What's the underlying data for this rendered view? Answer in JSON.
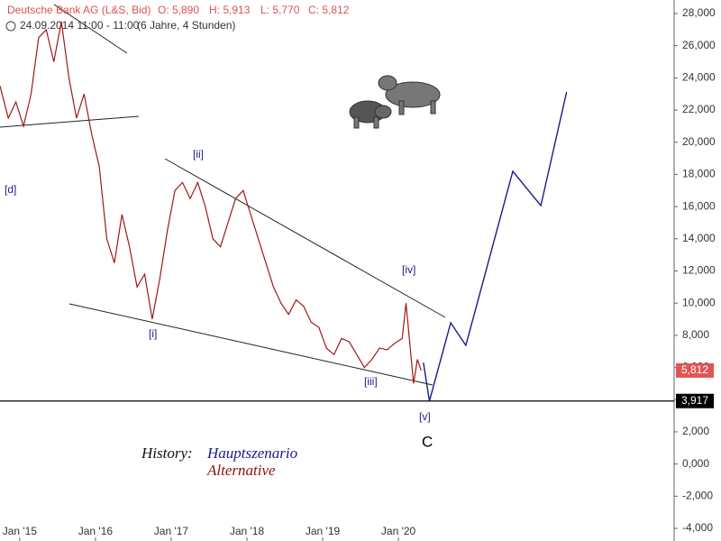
{
  "chart_data": {
    "type": "line",
    "header": {
      "title": "Deutsche Bank AG (L&S, Bid)",
      "open": "O: 5,890",
      "high": "H: 5,913",
      "low": "L: 5,770",
      "close": "C: 5,812",
      "period": "24.09.2014 11:00 - 11:00",
      "range": "(6 Jahre, 4 Stunden)"
    },
    "xlim": [
      2014.74,
      2023.64
    ],
    "xticks": [
      {
        "value": 2015,
        "label": "Jan '15"
      },
      {
        "value": 2016,
        "label": "Jan '16"
      },
      {
        "value": 2017,
        "label": "Jan '17"
      },
      {
        "value": 2018,
        "label": "Jan '18"
      },
      {
        "value": 2019,
        "label": "Jan '19"
      },
      {
        "value": 2020,
        "label": "Jan '20"
      }
    ],
    "ylim": [
      -4000,
      28000
    ],
    "yticks": [
      {
        "value": -4000,
        "label": "-4,000"
      },
      {
        "value": -2000,
        "label": "-2,000"
      },
      {
        "value": 0,
        "label": "0,000"
      },
      {
        "value": 2000,
        "label": "2,000"
      },
      {
        "value": 4000,
        "label": "4,000"
      },
      {
        "value": 6000,
        "label": "6,000"
      },
      {
        "value": 8000,
        "label": "8,000"
      },
      {
        "value": 10000,
        "label": "10,000"
      },
      {
        "value": 12000,
        "label": "12,000"
      },
      {
        "value": 14000,
        "label": "14,000"
      },
      {
        "value": 16000,
        "label": "16,000"
      },
      {
        "value": 18000,
        "label": "18,000"
      },
      {
        "value": 20000,
        "label": "20,000"
      },
      {
        "value": 22000,
        "label": "22,000"
      },
      {
        "value": 24000,
        "label": "24,000"
      },
      {
        "value": 26000,
        "label": "26,000"
      },
      {
        "value": 28000,
        "label": "28,000"
      }
    ],
    "series": [
      {
        "color": "#a01818",
        "x": [
          2014.74,
          2014.85,
          2014.95,
          2015.05,
          2015.15,
          2015.25,
          2015.35,
          2015.45,
          2015.55,
          2015.65,
          2015.75,
          2015.85,
          2015.95,
          2016.05,
          2016.15,
          2016.25,
          2016.35,
          2016.45,
          2016.55,
          2016.65,
          2016.75,
          2016.85,
          2016.95,
          2017.05,
          2017.15,
          2017.25,
          2017.35,
          2017.45,
          2017.55,
          2017.65,
          2017.75,
          2017.85,
          2017.95,
          2018.05,
          2018.15,
          2018.25,
          2018.35,
          2018.45,
          2018.55,
          2018.65,
          2018.75,
          2018.85,
          2018.95,
          2019.05,
          2019.15,
          2019.25,
          2019.35,
          2019.45,
          2019.55,
          2019.65,
          2019.75,
          2019.85,
          2019.95,
          2020.05,
          2020.1,
          2020.15,
          2020.2,
          2020.25,
          2020.3
        ],
        "values": [
          23500,
          21500,
          22500,
          21000,
          23000,
          26500,
          27000,
          25000,
          27500,
          24000,
          21500,
          23000,
          20500,
          18500,
          14000,
          12500,
          15500,
          13500,
          11000,
          11800,
          9000,
          11500,
          14500,
          17000,
          17500,
          16500,
          17500,
          16000,
          14000,
          13500,
          15000,
          16500,
          17000,
          15500,
          14000,
          12500,
          11000,
          10000,
          9300,
          10200,
          9800,
          8800,
          8500,
          7200,
          6800,
          7800,
          7600,
          6800,
          6000,
          6500,
          7200,
          7100,
          7500,
          7800,
          10000,
          7500,
          5000,
          6500,
          5812
        ]
      },
      {
        "color": "#1a1a8c",
        "x": [
          2020.33,
          2020.41,
          2020.69,
          2020.89,
          2021.51,
          2021.88,
          2022.22
        ],
        "values": [
          6300,
          3917,
          8778,
          7377,
          18192,
          16063,
          23125
        ]
      }
    ],
    "price_labels": [
      {
        "value": 5812,
        "label": "5,812",
        "color": "#e05555"
      },
      {
        "value": 3917,
        "label": "3,917",
        "color": "#000000"
      }
    ],
    "wave_labels": [
      "[d]",
      "[i]",
      "[ii]",
      "[iii]",
      "[iv]",
      "[v]",
      "C"
    ],
    "legend": {
      "title": "History:",
      "main": "Hauptszenario",
      "alt": "Alternative"
    }
  }
}
